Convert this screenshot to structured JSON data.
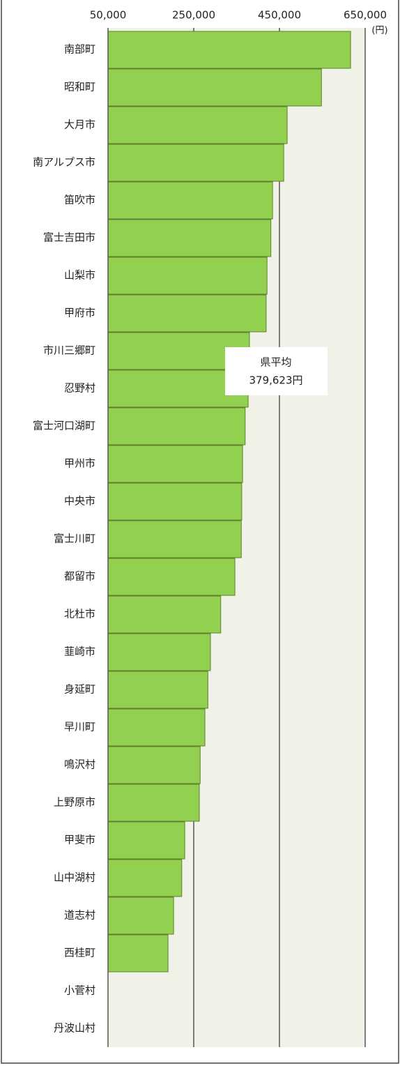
{
  "chart_data": {
    "type": "bar",
    "orientation": "horizontal",
    "categories": [
      "南部町",
      "昭和町",
      "大月市",
      "南アルプス市",
      "笛吹市",
      "富士吉田市",
      "山梨市",
      "甲府市",
      "市川三郷町",
      "忍野村",
      "富士河口湖町",
      "甲州市",
      "中央市",
      "富士川町",
      "都留市",
      "北杜市",
      "韮崎市",
      "身延町",
      "早川町",
      "鳴沢村",
      "上野原市",
      "甲斐市",
      "山中湖村",
      "道志村",
      "西桂町",
      "小菅村",
      "丹波山村"
    ],
    "values": [
      616000,
      548000,
      468000,
      460000,
      434000,
      430000,
      421000,
      419000,
      380000,
      377000,
      370000,
      364000,
      362000,
      361000,
      346000,
      313000,
      289000,
      283000,
      276000,
      265000,
      263000,
      229000,
      222000,
      203000,
      190000,
      null,
      null
    ],
    "color": "#92d050",
    "xlim": [
      50000,
      650000
    ],
    "xticks": [
      {
        "value": 50000,
        "label": "50,000"
      },
      {
        "value": 250000,
        "label": "250,000"
      },
      {
        "value": 450000,
        "label": "450,000"
      },
      {
        "value": 650000,
        "label": "650,000"
      }
    ],
    "unit_label": "(円)",
    "annotation": [
      "県平均",
      "379,623円"
    ],
    "grid": true
  }
}
